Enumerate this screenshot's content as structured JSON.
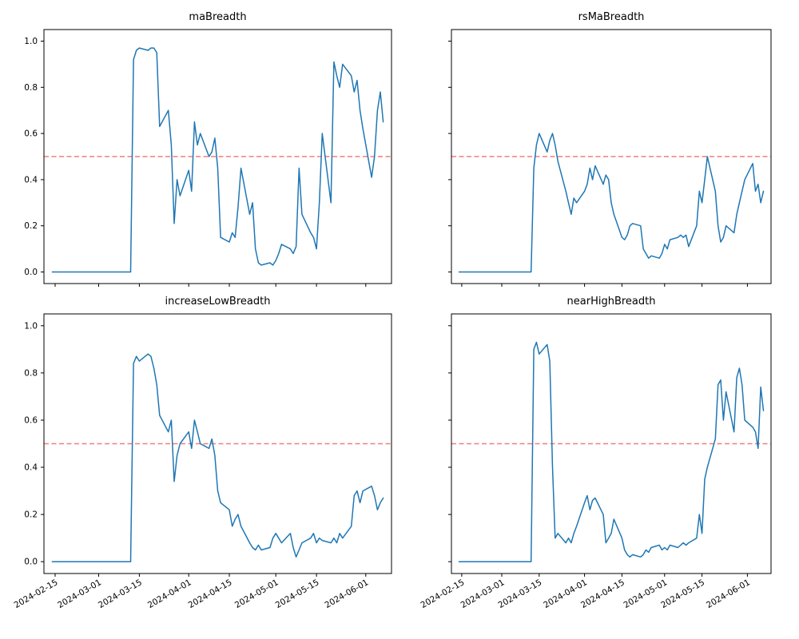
{
  "figure": {
    "background": "#ffffff"
  },
  "chart_data": {
    "type": "line",
    "layout": "2x2 subplots, shared date x-axis, shared y-axis 0-1, dashed threshold line at 0.5",
    "x_tick_labels": [
      "2024-02-15",
      "2024-03-01",
      "2024-03-15",
      "2024-04-01",
      "2024-04-15",
      "2024-05-01",
      "2024-05-15",
      "2024-06-01"
    ],
    "y_tick_labels": [
      "0.0",
      "0.2",
      "0.4",
      "0.6",
      "0.8",
      "1.0"
    ],
    "ylim": [
      -0.05,
      1.05
    ],
    "line_color": "#1f77b4",
    "threshold_line": {
      "y": 0.5,
      "color": "#ef7f7f",
      "style": "dashed"
    },
    "dates": [
      "2024-02-14",
      "2024-02-15",
      "2024-02-16",
      "2024-02-19",
      "2024-02-20",
      "2024-02-21",
      "2024-02-22",
      "2024-02-23",
      "2024-02-26",
      "2024-02-27",
      "2024-02-28",
      "2024-02-29",
      "2024-03-01",
      "2024-03-04",
      "2024-03-05",
      "2024-03-06",
      "2024-03-07",
      "2024-03-08",
      "2024-03-11",
      "2024-03-12",
      "2024-03-13",
      "2024-03-14",
      "2024-03-15",
      "2024-03-18",
      "2024-03-19",
      "2024-03-20",
      "2024-03-21",
      "2024-03-22",
      "2024-03-25",
      "2024-03-26",
      "2024-03-27",
      "2024-03-28",
      "2024-03-29",
      "2024-04-01",
      "2024-04-02",
      "2024-04-03",
      "2024-04-04",
      "2024-04-05",
      "2024-04-08",
      "2024-04-09",
      "2024-04-10",
      "2024-04-11",
      "2024-04-12",
      "2024-04-15",
      "2024-04-16",
      "2024-04-17",
      "2024-04-18",
      "2024-04-19",
      "2024-04-22",
      "2024-04-23",
      "2024-04-24",
      "2024-04-25",
      "2024-04-26",
      "2024-04-29",
      "2024-04-30",
      "2024-05-01",
      "2024-05-02",
      "2024-05-03",
      "2024-05-06",
      "2024-05-07",
      "2024-05-08",
      "2024-05-09",
      "2024-05-10",
      "2024-05-13",
      "2024-05-14",
      "2024-05-15",
      "2024-05-16",
      "2024-05-17",
      "2024-05-20",
      "2024-05-21",
      "2024-05-22",
      "2024-05-23",
      "2024-05-24",
      "2024-05-27",
      "2024-05-28",
      "2024-05-29",
      "2024-05-30",
      "2024-05-31",
      "2024-06-03",
      "2024-06-04",
      "2024-06-05",
      "2024-06-06",
      "2024-06-07"
    ],
    "subplots": [
      {
        "title": "maBreadth",
        "values": [
          0,
          0,
          0,
          0,
          0,
          0,
          0,
          0,
          0,
          0,
          0,
          0,
          0,
          0,
          0,
          0,
          0,
          0,
          0,
          0,
          0.92,
          0.96,
          0.97,
          0.96,
          0.97,
          0.97,
          0.95,
          0.63,
          0.7,
          0.55,
          0.21,
          0.4,
          0.33,
          0.44,
          0.35,
          0.65,
          0.55,
          0.6,
          0.5,
          0.52,
          0.58,
          0.45,
          0.15,
          0.13,
          0.17,
          0.15,
          0.28,
          0.45,
          0.25,
          0.3,
          0.1,
          0.04,
          0.03,
          0.04,
          0.03,
          0.05,
          0.08,
          0.12,
          0.1,
          0.08,
          0.11,
          0.45,
          0.25,
          0.17,
          0.15,
          0.1,
          0.3,
          0.6,
          0.3,
          0.91,
          0.85,
          0.8,
          0.9,
          0.85,
          0.78,
          0.83,
          0.7,
          0.62,
          0.41,
          0.5,
          0.7,
          0.78,
          0.65
        ]
      },
      {
        "title": "rsMaBreadth",
        "values": [
          0,
          0,
          0,
          0,
          0,
          0,
          0,
          0,
          0,
          0,
          0,
          0,
          0,
          0,
          0,
          0,
          0,
          0,
          0,
          0,
          0.45,
          0.55,
          0.6,
          0.52,
          0.57,
          0.6,
          0.55,
          0.48,
          0.35,
          0.3,
          0.25,
          0.32,
          0.3,
          0.35,
          0.38,
          0.45,
          0.4,
          0.46,
          0.38,
          0.42,
          0.4,
          0.3,
          0.25,
          0.15,
          0.14,
          0.16,
          0.2,
          0.21,
          0.2,
          0.1,
          0.08,
          0.06,
          0.07,
          0.06,
          0.08,
          0.12,
          0.1,
          0.14,
          0.15,
          0.16,
          0.15,
          0.16,
          0.11,
          0.2,
          0.35,
          0.3,
          0.4,
          0.5,
          0.35,
          0.2,
          0.13,
          0.15,
          0.2,
          0.17,
          0.25,
          0.3,
          0.35,
          0.4,
          0.47,
          0.35,
          0.38,
          0.3,
          0.35
        ]
      },
      {
        "title": "increaseLowBreadth",
        "values": [
          0,
          0,
          0,
          0,
          0,
          0,
          0,
          0,
          0,
          0,
          0,
          0,
          0,
          0,
          0,
          0,
          0,
          0,
          0,
          0,
          0.84,
          0.87,
          0.85,
          0.88,
          0.87,
          0.82,
          0.75,
          0.62,
          0.55,
          0.6,
          0.34,
          0.45,
          0.5,
          0.55,
          0.48,
          0.6,
          0.55,
          0.5,
          0.48,
          0.52,
          0.45,
          0.3,
          0.25,
          0.22,
          0.15,
          0.18,
          0.2,
          0.15,
          0.08,
          0.06,
          0.05,
          0.07,
          0.05,
          0.06,
          0.1,
          0.12,
          0.1,
          0.08,
          0.12,
          0.06,
          0.02,
          0.05,
          0.08,
          0.1,
          0.12,
          0.08,
          0.1,
          0.09,
          0.08,
          0.1,
          0.08,
          0.12,
          0.1,
          0.15,
          0.28,
          0.3,
          0.25,
          0.3,
          0.32,
          0.28,
          0.22,
          0.25,
          0.27
        ]
      },
      {
        "title": "nearHighBreadth",
        "values": [
          0,
          0,
          0,
          0,
          0,
          0,
          0,
          0,
          0,
          0,
          0,
          0,
          0,
          0,
          0,
          0,
          0,
          0,
          0,
          0,
          0.9,
          0.93,
          0.88,
          0.92,
          0.85,
          0.4,
          0.1,
          0.12,
          0.08,
          0.1,
          0.08,
          0.12,
          0.15,
          0.25,
          0.28,
          0.22,
          0.26,
          0.27,
          0.2,
          0.08,
          0.1,
          0.12,
          0.18,
          0.1,
          0.05,
          0.03,
          0.02,
          0.03,
          0.02,
          0.03,
          0.05,
          0.04,
          0.06,
          0.07,
          0.05,
          0.06,
          0.05,
          0.07,
          0.06,
          0.07,
          0.08,
          0.07,
          0.08,
          0.1,
          0.2,
          0.12,
          0.35,
          0.4,
          0.52,
          0.75,
          0.77,
          0.6,
          0.72,
          0.55,
          0.78,
          0.82,
          0.75,
          0.6,
          0.57,
          0.55,
          0.48,
          0.74,
          0.64
        ]
      }
    ]
  }
}
